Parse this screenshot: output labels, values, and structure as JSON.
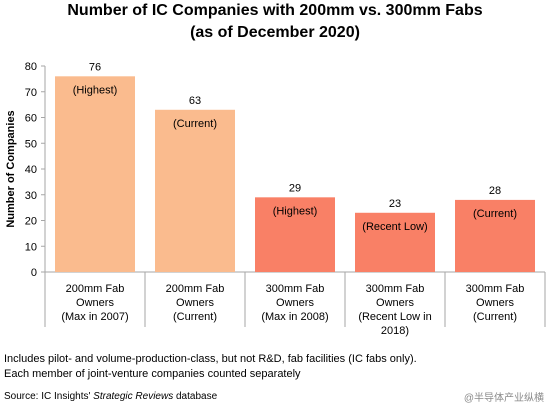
{
  "title_line1": "Number of IC Companies with 200mm vs. 300mm Fabs",
  "title_line2": "(as of December 2020)",
  "footnotes": [
    "Includes pilot- and volume-production-class, but not R&D, fab facilities (IC fabs only).",
    "Each member of joint-venture companies counted separately"
  ],
  "source": {
    "prefix": "Source:  IC Insights' ",
    "italic": "Strategic Reviews",
    "suffix": " database"
  },
  "watermark": "@半导体产业纵横",
  "colors": {
    "fab200": "#FABB8E",
    "fab300": "#F98066",
    "axis": "#A6A6A6"
  },
  "chart_data": {
    "type": "bar",
    "ylabel": "Number of Companies",
    "ylim": [
      0,
      80
    ],
    "yticks": [
      0,
      10,
      20,
      30,
      40,
      50,
      60,
      70,
      80
    ],
    "grid": false,
    "categories": [
      [
        "200mm Fab",
        "Owners",
        "(Max in 2007)"
      ],
      [
        "200mm Fab",
        "Owners",
        "(Current)"
      ],
      [
        "300mm Fab",
        "Owners",
        "(Max in 2008)"
      ],
      [
        "300mm Fab",
        "Owners",
        "(Recent Low in",
        "2018)"
      ],
      [
        "300mm Fab",
        "Owners",
        "(Current)"
      ]
    ],
    "values": [
      76,
      63,
      29,
      23,
      28
    ],
    "annotations": [
      "(Highest)",
      "(Current)",
      "(Highest)",
      "(Recent Low)",
      "(Current)"
    ],
    "bar_colors": [
      "#FABB8E",
      "#FABB8E",
      "#F98066",
      "#F98066",
      "#F98066"
    ]
  }
}
